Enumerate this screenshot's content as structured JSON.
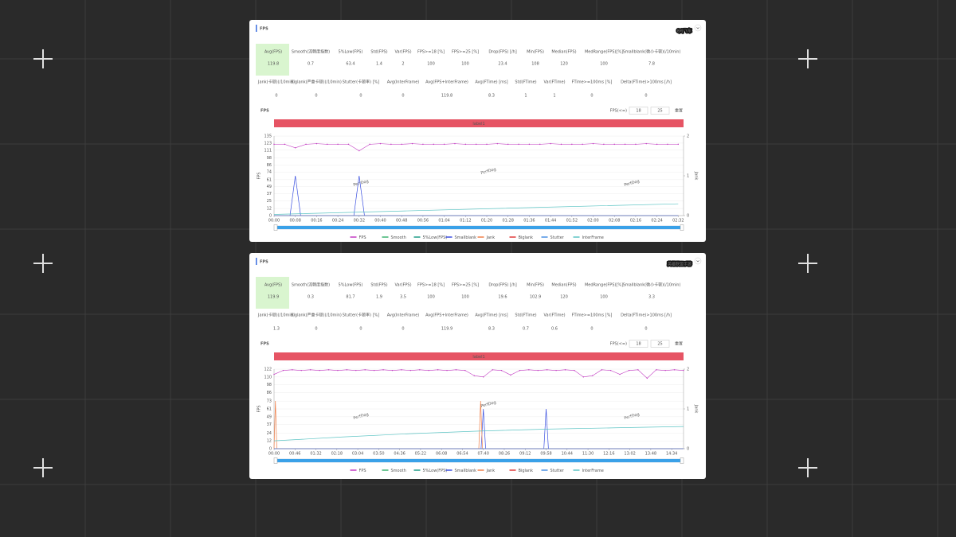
{
  "panels": [
    {
      "overlay_title": "QQ飞车",
      "header": "FPS",
      "metrics": [
        [
          {
            "label": "Avg(FPS)",
            "value": 119.8
          },
          {
            "label": "Smooth(流畅度指数)",
            "value": 0.7
          },
          {
            "label": "5%Low(FPS)",
            "value": 63.4
          },
          {
            "label": "Std(FPS)",
            "value": 1.4
          },
          {
            "label": "Var(FPS)",
            "value": 2
          },
          {
            "label": "FPS>=18 [%]",
            "value": 100
          },
          {
            "label": "FPS>=25 [%]",
            "value": 100
          },
          {
            "label": "Drop(FPS) [/h]",
            "value": 23.4
          },
          {
            "label": "Min(FPS)",
            "value": 108
          },
          {
            "label": "Median(FPS)",
            "value": 120
          },
          {
            "label": "MedRange(FPS)[%]",
            "value": 100
          },
          {
            "label": "Smallblank(微小卡顿)(/10min)",
            "value": 7.8
          }
        ],
        [
          {
            "label": "Jank(卡顿)(/10min)",
            "value": 0
          },
          {
            "label": "Biglank(严重卡顿)(/10min)",
            "value": 0
          },
          {
            "label": "Stutter(卡顿率) [%]",
            "value": 0
          },
          {
            "label": "Avg(InterFrame)",
            "value": 0
          },
          {
            "label": "Avg(FPS+InterFrame)",
            "value": 119.8
          },
          {
            "label": "Avg(FTime) [ms]",
            "value": 8.3
          },
          {
            "label": "Std(FTime)",
            "value": 1
          },
          {
            "label": "Var(FTime)",
            "value": 1
          },
          {
            "label": "FTime>=100ms [%]",
            "value": 0
          },
          {
            "label": "Delta(FTime)>100ms [/h]",
            "value": 0
          }
        ]
      ],
      "chart": {
        "type": "line",
        "title": "FPS",
        "threshold_label": "FPS(<=)",
        "thresholds": [
          18,
          25
        ],
        "reset": "重置",
        "band_label": "label1",
        "ylabel": "FPS",
        "y2label": "Jank",
        "watermark": "PerfDog",
        "xlim": [
          0,
          154
        ],
        "xticks": [
          {
            "value": 0,
            "label": "00:00"
          },
          {
            "value": 8,
            "label": "00:08"
          },
          {
            "value": 16,
            "label": "00:16"
          },
          {
            "value": 24,
            "label": "00:24"
          },
          {
            "value": 32,
            "label": "00:32"
          },
          {
            "value": 40,
            "label": "00:40"
          },
          {
            "value": 48,
            "label": "00:48"
          },
          {
            "value": 56,
            "label": "00:56"
          },
          {
            "value": 64,
            "label": "01:04"
          },
          {
            "value": 72,
            "label": "01:12"
          },
          {
            "value": 80,
            "label": "01:20"
          },
          {
            "value": 88,
            "label": "01:28"
          },
          {
            "value": 96,
            "label": "01:36"
          },
          {
            "value": 104,
            "label": "01:44"
          },
          {
            "value": 112,
            "label": "01:52"
          },
          {
            "value": 120,
            "label": "02:00"
          },
          {
            "value": 128,
            "label": "02:08"
          },
          {
            "value": 136,
            "label": "02:16"
          },
          {
            "value": 144,
            "label": "02:24"
          },
          {
            "value": 152,
            "label": "02:32"
          }
        ],
        "ylim": [
          0,
          135
        ],
        "yticks": [
          0,
          12,
          25,
          37,
          49,
          61,
          74,
          86,
          98,
          111,
          123,
          135
        ],
        "y2lim": [
          0,
          2
        ],
        "y2ticks": [
          0,
          1,
          2
        ],
        "series": [
          {
            "name": "FPS",
            "color": "#c23bc2",
            "x": [
              0,
              4,
              8,
              12,
              16,
              20,
              24,
              28,
              32,
              36,
              40,
              44,
              48,
              52,
              56,
              60,
              64,
              68,
              72,
              76,
              80,
              84,
              88,
              92,
              96,
              100,
              104,
              108,
              112,
              116,
              120,
              124,
              128,
              132,
              136,
              140,
              144,
              148,
              152
            ],
            "values": [
              121,
              121,
              115,
              121,
              122,
              121,
              121,
              121,
              110,
              121,
              122,
              121,
              121,
              122,
              121,
              121,
              121,
              122,
              121,
              121,
              121,
              122,
              121,
              121,
              121,
              121,
              122,
              121,
              121,
              121,
              122,
              121,
              121,
              121,
              121,
              122,
              121,
              121,
              121
            ]
          },
          {
            "name": "Smooth",
            "color": "#3cb371",
            "x": [
              0,
              152
            ],
            "values": [
              0,
              0
            ]
          },
          {
            "name": "5%Low(FPS)",
            "color": "#1f9e89",
            "x": [
              0,
              152
            ],
            "values": [
              0,
              0
            ]
          },
          {
            "name": "Smallblank",
            "color": "#3a4fe0",
            "axis": "y2",
            "x": [
              0,
              6,
              8,
              10,
              30,
              32,
              34,
              152
            ],
            "values": [
              0,
              0,
              1,
              0,
              0,
              1,
              0,
              0
            ]
          },
          {
            "name": "Jank",
            "color": "#f0804a",
            "axis": "y2",
            "x": [
              0,
              152
            ],
            "values": [
              0,
              0
            ]
          },
          {
            "name": "Biglank",
            "color": "#e03b3b",
            "axis": "y2",
            "x": [
              0,
              152
            ],
            "values": [
              0,
              0
            ]
          },
          {
            "name": "Stutter",
            "color": "#4a90e2",
            "axis": "y2",
            "x": [
              0,
              152
            ],
            "values": [
              0,
              0
            ]
          },
          {
            "name": "InterFrame",
            "color": "#5cc4c4",
            "x": [
              0,
              50,
              100,
              152
            ],
            "values": [
              2,
              8,
              14,
              20
            ]
          }
        ]
      }
    },
    {
      "overlay_title": "英雄联盟手游",
      "header": "FPS",
      "metrics": [
        [
          {
            "label": "Avg(FPS)",
            "value": 119.9
          },
          {
            "label": "Smooth(流畅度指数)",
            "value": 0.3
          },
          {
            "label": "5%Low(FPS)",
            "value": 81.7
          },
          {
            "label": "Std(FPS)",
            "value": 1.9
          },
          {
            "label": "Var(FPS)",
            "value": 3.5
          },
          {
            "label": "FPS>=18 [%]",
            "value": 100
          },
          {
            "label": "FPS>=25 [%]",
            "value": 100
          },
          {
            "label": "Drop(FPS) [/h]",
            "value": 19.6
          },
          {
            "label": "Min(FPS)",
            "value": 102.9
          },
          {
            "label": "Median(FPS)",
            "value": 120
          },
          {
            "label": "MedRange(FPS)[%]",
            "value": 100
          },
          {
            "label": "Smallblank(微小卡顿)(/10min)",
            "value": 3.3
          }
        ],
        [
          {
            "label": "Jank(卡顿)(/10min)",
            "value": 1.3
          },
          {
            "label": "Biglank(严重卡顿)(/10min)",
            "value": 0
          },
          {
            "label": "Stutter(卡顿率) [%]",
            "value": 0
          },
          {
            "label": "Avg(InterFrame)",
            "value": 0
          },
          {
            "label": "Avg(FPS+InterFrame)",
            "value": 119.9
          },
          {
            "label": "Avg(FTime) [ms]",
            "value": 8.3
          },
          {
            "label": "Std(FTime)",
            "value": 0.7
          },
          {
            "label": "Var(FTime)",
            "value": 0.6
          },
          {
            "label": "FTime>=100ms [%]",
            "value": 0
          },
          {
            "label": "Delta(FTime)>100ms [/h]",
            "value": 0
          }
        ]
      ],
      "chart": {
        "type": "line",
        "title": "FPS",
        "threshold_label": "FPS(<=)",
        "thresholds": [
          18,
          25
        ],
        "reset": "重置",
        "band_label": "label1",
        "ylabel": "FPS",
        "y2label": "Jank",
        "watermark": "PerfDog",
        "xlim": [
          0,
          900
        ],
        "xticks": [
          {
            "value": 0,
            "label": "00:00"
          },
          {
            "value": 46,
            "label": "00:46"
          },
          {
            "value": 92,
            "label": "01:32"
          },
          {
            "value": 138,
            "label": "02:18"
          },
          {
            "value": 184,
            "label": "03:04"
          },
          {
            "value": 230,
            "label": "03:50"
          },
          {
            "value": 276,
            "label": "04:36"
          },
          {
            "value": 322,
            "label": "05:22"
          },
          {
            "value": 368,
            "label": "06:08"
          },
          {
            "value": 414,
            "label": "06:54"
          },
          {
            "value": 460,
            "label": "07:40"
          },
          {
            "value": 506,
            "label": "08:26"
          },
          {
            "value": 552,
            "label": "09:12"
          },
          {
            "value": 598,
            "label": "09:58"
          },
          {
            "value": 644,
            "label": "10:44"
          },
          {
            "value": 690,
            "label": "11:30"
          },
          {
            "value": 736,
            "label": "12:16"
          },
          {
            "value": 782,
            "label": "13:02"
          },
          {
            "value": 828,
            "label": "13:48"
          },
          {
            "value": 874,
            "label": "14:34"
          }
        ],
        "ylim": [
          0,
          122
        ],
        "yticks": [
          0,
          12,
          24,
          37,
          49,
          61,
          73,
          86,
          98,
          110,
          122
        ],
        "y2lim": [
          0,
          2
        ],
        "y2ticks": [
          0,
          1,
          2
        ],
        "series": [
          {
            "name": "FPS",
            "color": "#c23bc2",
            "x": [
              0,
              20,
              40,
              60,
              80,
              100,
              120,
              140,
              160,
              180,
              200,
              220,
              240,
              260,
              280,
              300,
              320,
              340,
              360,
              380,
              400,
              420,
              440,
              460,
              480,
              500,
              520,
              540,
              560,
              580,
              600,
              620,
              640,
              660,
              680,
              700,
              720,
              740,
              760,
              780,
              800,
              820,
              840,
              860,
              880,
              900
            ],
            "values": [
              114,
              120,
              121,
              120,
              121,
              120,
              121,
              120,
              121,
              120,
              121,
              120,
              121,
              120,
              121,
              120,
              121,
              120,
              121,
              120,
              121,
              120,
              112,
              110,
              121,
              120,
              113,
              120,
              121,
              120,
              121,
              120,
              121,
              120,
              110,
              112,
              121,
              120,
              114,
              120,
              121,
              108,
              121,
              120,
              121,
              120
            ]
          },
          {
            "name": "Smooth",
            "color": "#3cb371",
            "x": [
              0,
              900
            ],
            "values": [
              0,
              0
            ]
          },
          {
            "name": "5%Low(FPS)",
            "color": "#1f9e89",
            "x": [
              0,
              900
            ],
            "values": [
              0,
              0
            ]
          },
          {
            "name": "Smallblank",
            "color": "#3a4fe0",
            "axis": "y2",
            "x": [
              0,
              455,
              460,
              465,
              593,
              598,
              603,
              900
            ],
            "values": [
              0,
              0,
              1,
              0,
              0,
              1,
              0,
              0
            ]
          },
          {
            "name": "Jank",
            "color": "#f0804a",
            "axis": "y2",
            "x": [
              0,
              3,
              6,
              450,
              454,
              458,
              900
            ],
            "values": [
              0,
              1.2,
              0,
              0,
              1.2,
              0,
              0
            ]
          },
          {
            "name": "Biglank",
            "color": "#e03b3b",
            "axis": "y2",
            "x": [
              0,
              900
            ],
            "values": [
              0,
              0
            ]
          },
          {
            "name": "Stutter",
            "color": "#4a90e2",
            "axis": "y2",
            "x": [
              0,
              900
            ],
            "values": [
              0,
              0
            ]
          },
          {
            "name": "InterFrame",
            "color": "#5cc4c4",
            "x": [
              0,
              150,
              300,
              450,
              600,
              750,
              900
            ],
            "values": [
              12,
              18,
              23,
              27,
              30,
              32,
              34
            ]
          }
        ]
      }
    }
  ]
}
